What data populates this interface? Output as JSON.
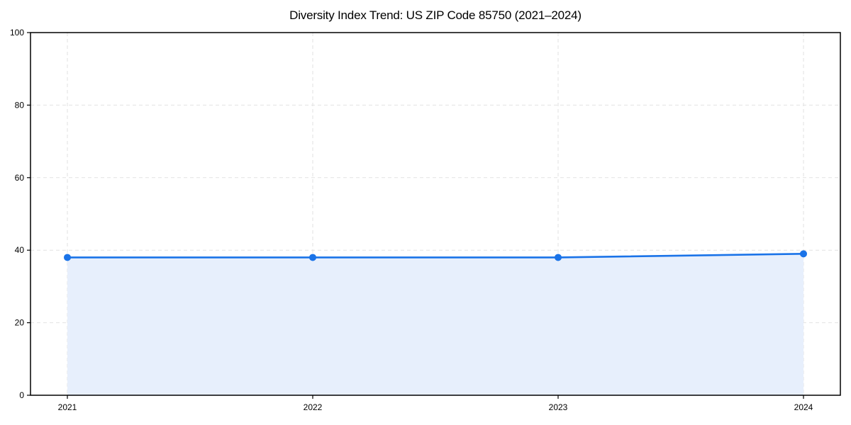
{
  "chart_data": {
    "type": "line",
    "area_fill": true,
    "markers": true,
    "title": "Diversity Index Trend: US ZIP Code 85750 (2021–2024)",
    "x": [
      "2021",
      "2022",
      "2023",
      "2024"
    ],
    "series": [
      {
        "name": "Diversity Index",
        "values": [
          38,
          38,
          38,
          39
        ]
      }
    ],
    "xlabel": "",
    "ylabel": "",
    "ylim": [
      0,
      100
    ],
    "yticks": [
      0,
      20,
      40,
      60,
      80,
      100
    ],
    "grid": "dashed",
    "legend": "none",
    "colors": {
      "line": "#1a73e8",
      "marker": "#1a73e8",
      "fill": "#e7effc",
      "grid": "#e2e2e2",
      "axis": "#000000",
      "text": "#000000",
      "background": "#ffffff"
    }
  }
}
